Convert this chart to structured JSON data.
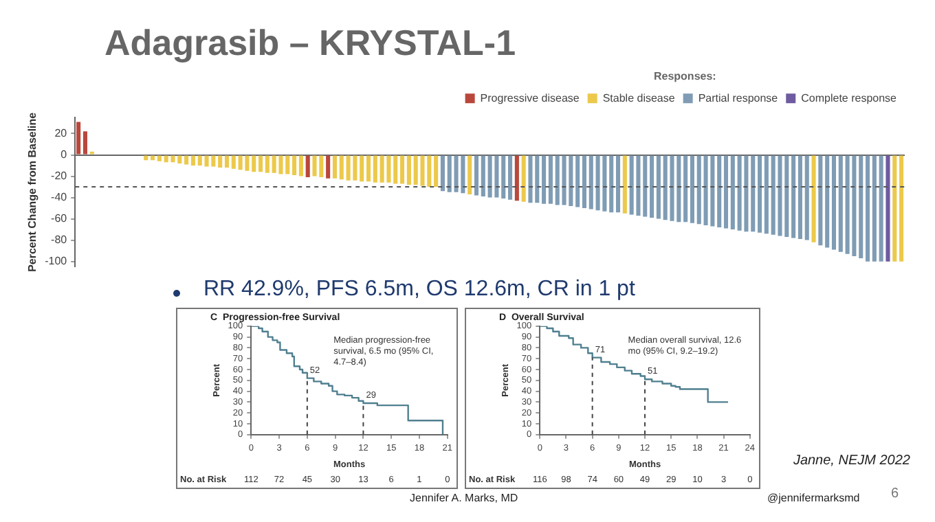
{
  "chart_data": [
    {
      "type": "bar",
      "title": "Adagrasib – KRYSTAL-1",
      "ylabel": "Percent Change from Baseline",
      "legend_title": "Responses:",
      "legend": "top right",
      "stacked": true,
      "tick_labels": "y",
      "categories": [
        null,
        null,
        null,
        null,
        null,
        null,
        null,
        null,
        null,
        null,
        null,
        null,
        null,
        null,
        null,
        null,
        null,
        null,
        null,
        null,
        null,
        null,
        null,
        null,
        null,
        null,
        null,
        null,
        null,
        null,
        null,
        null,
        null,
        null,
        null,
        null,
        null,
        null,
        null,
        null,
        null,
        null,
        null,
        null,
        null,
        null,
        null,
        null,
        null,
        null,
        null,
        null,
        null,
        null,
        null,
        null,
        null,
        null,
        null,
        null,
        null,
        null,
        null,
        null,
        null,
        null,
        null,
        null,
        null,
        null,
        null,
        null,
        null,
        null,
        null,
        null,
        null,
        null,
        null,
        null,
        null,
        null,
        null,
        null,
        null,
        null,
        null,
        null,
        null,
        null,
        null,
        null,
        null,
        null,
        null,
        null,
        null,
        null,
        null,
        null,
        null,
        null,
        null,
        null,
        null,
        null,
        null,
        null,
        null,
        null,
        null,
        null,
        null,
        null,
        null,
        null,
        null,
        null,
        null,
        null,
        null,
        null,
        null
      ],
      "series": [
        {
          "name": "Progressive disease",
          "color": "#b9473b",
          "values": [
            31,
            22,
            null,
            null,
            null,
            null,
            null,
            null,
            null,
            null,
            null,
            null,
            null,
            null,
            null,
            null,
            null,
            null,
            null,
            null,
            null,
            null,
            null,
            null,
            null,
            null,
            null,
            null,
            null,
            null,
            null,
            null,
            null,
            null,
            -21,
            null,
            null,
            -22,
            null,
            null,
            null,
            null,
            null,
            null,
            null,
            null,
            null,
            null,
            null,
            null,
            null,
            null,
            null,
            null,
            null,
            null,
            null,
            null,
            null,
            null,
            null,
            null,
            null,
            null,
            null,
            -43,
            null,
            null,
            null,
            null,
            null,
            null,
            null,
            null,
            null,
            null,
            null,
            null,
            null,
            null,
            null,
            null,
            null,
            null,
            null,
            null,
            null,
            null,
            null,
            null,
            null,
            null,
            null,
            null,
            null,
            null,
            null,
            null,
            null,
            null,
            null,
            null,
            null,
            null,
            null,
            null,
            null,
            null,
            null,
            null,
            null,
            null,
            null,
            null,
            null,
            null,
            null,
            null,
            null,
            null,
            null,
            null,
            null
          ]
        },
        {
          "name": "Stable disease",
          "color": "#ecc94b",
          "values": [
            null,
            null,
            3,
            null,
            null,
            null,
            null,
            null,
            null,
            null,
            -5,
            -5,
            -6,
            -7,
            -7,
            -8,
            -9,
            -10,
            -10,
            -11,
            -11,
            -12,
            -12,
            -13,
            -14,
            -15,
            -16,
            -16,
            -17,
            -17,
            -18,
            -18,
            -19,
            -20,
            null,
            -20,
            -21,
            null,
            -22,
            -23,
            -24,
            -24,
            -25,
            -25,
            -26,
            -26,
            -26,
            -27,
            -27,
            -28,
            -28,
            -29,
            -30,
            -30,
            null,
            null,
            null,
            null,
            -37,
            null,
            null,
            null,
            null,
            null,
            null,
            null,
            -44,
            null,
            null,
            null,
            null,
            null,
            null,
            null,
            null,
            null,
            null,
            null,
            null,
            null,
            null,
            -55,
            null,
            null,
            null,
            null,
            null,
            null,
            null,
            null,
            null,
            null,
            null,
            null,
            null,
            null,
            null,
            null,
            null,
            null,
            null,
            null,
            null,
            null,
            null,
            null,
            null,
            null,
            null,
            -82,
            null,
            null,
            null,
            null,
            null,
            null,
            null,
            null,
            null,
            null,
            null,
            -100,
            -100
          ]
        },
        {
          "name": "Partial response",
          "color": "#7f9cb4",
          "values": [
            null,
            null,
            null,
            null,
            null,
            null,
            null,
            null,
            null,
            null,
            null,
            null,
            null,
            null,
            null,
            null,
            null,
            null,
            null,
            null,
            null,
            null,
            null,
            null,
            null,
            null,
            null,
            null,
            null,
            null,
            null,
            null,
            null,
            null,
            null,
            null,
            null,
            null,
            null,
            null,
            null,
            null,
            null,
            null,
            null,
            null,
            null,
            null,
            null,
            null,
            null,
            null,
            null,
            null,
            -34,
            -35,
            -35,
            -36,
            null,
            -38,
            -39,
            -40,
            -40,
            -41,
            -42,
            null,
            null,
            -45,
            -45,
            -46,
            -46,
            -47,
            -47,
            -48,
            -49,
            -50,
            -51,
            -52,
            -53,
            -54,
            -54,
            null,
            -56,
            -57,
            -58,
            -59,
            -60,
            -61,
            -62,
            -63,
            -63,
            -64,
            -65,
            -66,
            -67,
            -68,
            -69,
            -70,
            -71,
            -72,
            -72,
            -73,
            -74,
            -75,
            -76,
            -77,
            -78,
            -79,
            -80,
            null,
            -85,
            -87,
            -89,
            -91,
            -93,
            -95,
            -97,
            -100,
            -100,
            -100,
            null,
            null,
            null
          ]
        },
        {
          "name": "Complete response",
          "color": "#6e5ba0",
          "values": [
            null,
            null,
            null,
            null,
            null,
            null,
            null,
            null,
            null,
            null,
            null,
            null,
            null,
            null,
            null,
            null,
            null,
            null,
            null,
            null,
            null,
            null,
            null,
            null,
            null,
            null,
            null,
            null,
            null,
            null,
            null,
            null,
            null,
            null,
            null,
            null,
            null,
            null,
            null,
            null,
            null,
            null,
            null,
            null,
            null,
            null,
            null,
            null,
            null,
            null,
            null,
            null,
            null,
            null,
            null,
            null,
            null,
            null,
            null,
            null,
            null,
            null,
            null,
            null,
            null,
            null,
            null,
            null,
            null,
            null,
            null,
            null,
            null,
            null,
            null,
            null,
            null,
            null,
            null,
            null,
            null,
            null,
            null,
            null,
            null,
            null,
            null,
            null,
            null,
            null,
            null,
            null,
            null,
            null,
            null,
            null,
            null,
            null,
            null,
            null,
            null,
            null,
            null,
            null,
            null,
            null,
            null,
            null,
            null,
            null,
            null,
            null,
            null,
            null,
            null,
            null,
            null,
            null,
            null,
            null,
            -100,
            null,
            null
          ]
        }
      ],
      "ylim": [
        -105,
        35
      ],
      "yticks": [
        20,
        0,
        -20,
        -40,
        -60,
        -80,
        -100
      ],
      "ref_lines": [
        {
          "axis": "y",
          "value": -30,
          "line_style": "dashed",
          "color": "#555555"
        }
      ],
      "annotations": [
        "RR 42.9%, PFS 6.5m, OS 12.6m, CR in 1 pt",
        "Janne, NEJM 2022",
        "Jennifer A. Marks, MD",
        "@jennifermarksmd",
        "6"
      ]
    },
    {
      "type": "step",
      "title": "C  Progression-free Survival",
      "xlabel": "Months",
      "ylabel": "Percent",
      "xlim": [
        0,
        21
      ],
      "xticks": [
        0,
        3,
        6,
        9,
        12,
        15,
        18,
        21
      ],
      "ylim": [
        0,
        100
      ],
      "yticks": [
        0,
        10,
        20,
        30,
        40,
        50,
        60,
        70,
        80,
        90,
        100
      ],
      "series": [
        {
          "color": "#4f7f8f",
          "x": [
            0,
            0.8,
            1.2,
            1.8,
            2.3,
            2.8,
            3.1,
            3.8,
            4.4,
            4.6,
            5.2,
            5.5,
            6,
            6.7,
            7.5,
            8.3,
            8.7,
            9.2,
            10,
            10.8,
            11.5,
            12,
            13.5,
            16.8,
            16.8,
            20.5,
            20.5
          ],
          "values": [
            100,
            98,
            95,
            90,
            87,
            85,
            78,
            75,
            72,
            63,
            60,
            57,
            52,
            49,
            47,
            45,
            40,
            37,
            36,
            34,
            31,
            29,
            27,
            27,
            13,
            13,
            0
          ]
        }
      ],
      "ref_lines": [
        {
          "axis": "x",
          "value": 6,
          "line_style": "dashed",
          "color": "#444444"
        },
        {
          "axis": "x",
          "value": 12,
          "line_style": "dashed",
          "color": "#444444"
        }
      ],
      "annotations": [
        "Median progression-free survival, 6.5 mo (95% CI, 4.7–8.4)",
        "No. at Risk",
        "52",
        "29",
        "112",
        "72",
        "45",
        "30",
        "13",
        "6",
        "1",
        "0"
      ]
    },
    {
      "type": "step",
      "title": "D  Overall Survival",
      "xlabel": "Months",
      "ylabel": "Percent",
      "xlim": [
        0,
        24
      ],
      "xticks": [
        0,
        3,
        6,
        9,
        12,
        15,
        18,
        21,
        24
      ],
      "ylim": [
        0,
        100
      ],
      "yticks": [
        0,
        10,
        20,
        30,
        40,
        50,
        60,
        70,
        80,
        90,
        100
      ],
      "series": [
        {
          "color": "#4f7f8f",
          "x": [
            0,
            0.8,
            1.5,
            2.2,
            3.3,
            3.8,
            4.7,
            5.5,
            6,
            7,
            8,
            8.8,
            9.7,
            10.5,
            11.5,
            12,
            12.8,
            14,
            15,
            15.5,
            16,
            19,
            19.2,
            21.5
          ],
          "values": [
            100,
            98,
            95,
            91,
            89,
            83,
            80,
            75,
            71,
            67,
            65,
            62,
            59,
            56,
            54,
            51,
            49,
            47,
            45,
            44,
            42,
            42,
            30,
            30
          ]
        }
      ],
      "ref_lines": [
        {
          "axis": "x",
          "value": 6,
          "line_style": "dashed",
          "color": "#444444"
        },
        {
          "axis": "x",
          "value": 12,
          "line_style": "dashed",
          "color": "#444444"
        }
      ],
      "annotations": [
        "Median overall survival, 12.6 mo (95% CI, 9.2–19.2)",
        "No. at Risk",
        "71",
        "51",
        "116",
        "98",
        "74",
        "60",
        "49",
        "29",
        "10",
        "3",
        "0"
      ]
    }
  ]
}
